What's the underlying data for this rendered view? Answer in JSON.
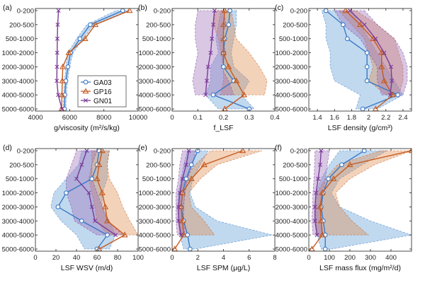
{
  "figure": {
    "depth_labels": [
      "0-200",
      "200-500",
      "500-1000",
      "1000-2000",
      "2000-3000",
      "3000-4000",
      "4000-5000",
      "5000-6000"
    ],
    "series_styles": [
      {
        "name": "GA03",
        "color": "#3b78c4",
        "fill": "#5b9bd5",
        "marker": "circle"
      },
      {
        "name": "GP16",
        "color": "#c65a1e",
        "fill": "#e08a4a",
        "marker": "triangle"
      },
      {
        "name": "GN01",
        "color": "#7a3b98",
        "fill": "#9b6bb8",
        "marker": "x"
      }
    ]
  },
  "chart_data": [
    {
      "type": "line",
      "panel_label": "(a)",
      "xlabel": "g/viscosity (m²/s/kg)",
      "xlim": [
        4000,
        10000
      ],
      "xticks": [
        4000,
        6000,
        8000,
        10000
      ],
      "xtick_labels": [
        "4000",
        "6000",
        "8000",
        "10000"
      ],
      "legend": "inside-lower-right",
      "series": [
        {
          "name": "GA03",
          "values": [
            9100,
            7200,
            6600,
            6050,
            5900,
            5780,
            5720,
            5700
          ]
        },
        {
          "name": "GP16",
          "values": [
            9500,
            7500,
            6900,
            5950,
            5600,
            5570,
            5550,
            5530
          ]
        },
        {
          "name": "GN01",
          "values": [
            5350,
            5300,
            5280,
            5270,
            5260,
            5250,
            5330,
            5550
          ]
        }
      ],
      "bands": [
        {
          "name": "GA03",
          "lower": [
            8700,
            7000,
            6400,
            5900,
            5780,
            5700,
            5650,
            5620
          ],
          "upper": [
            9400,
            7400,
            6800,
            6200,
            6000,
            5880,
            5800,
            5780
          ]
        }
      ]
    },
    {
      "type": "line",
      "panel_label": "(b)",
      "xlabel": "f_LSF",
      "xlim": [
        0,
        0.4
      ],
      "xticks": [
        0,
        0.1,
        0.2,
        0.3,
        0.4
      ],
      "xtick_labels": [
        "0",
        "0.1",
        "0.2",
        "0.3",
        "0.4"
      ],
      "series": [
        {
          "name": "GA03",
          "values": [
            0.225,
            0.22,
            0.205,
            0.2,
            0.2,
            0.24,
            0.16,
            0.3
          ]
        },
        {
          "name": "GP16",
          "values": [
            0.205,
            0.2,
            0.2,
            0.2,
            0.22,
            0.25,
            0.28,
            0.205
          ]
        },
        {
          "name": "GN01",
          "values": [
            0.165,
            0.16,
            0.155,
            0.15,
            0.14,
            0.135,
            0.13,
            null
          ]
        }
      ],
      "bands": [
        {
          "name": "GA03",
          "lower": [
            0.19,
            0.18,
            0.17,
            0.18,
            0.15,
            0.15,
            0.13,
            0.18
          ],
          "upper": [
            0.25,
            0.25,
            0.24,
            0.23,
            0.24,
            0.3,
            0.27,
            0.32
          ]
        },
        {
          "name": "GP16",
          "lower": [
            0.17,
            0.16,
            0.18,
            0.19,
            0.2,
            0.2,
            0.19,
            null
          ],
          "upper": [
            0.23,
            0.24,
            0.25,
            0.3,
            0.34,
            0.37,
            0.36,
            null
          ]
        },
        {
          "name": "GN01",
          "lower": [
            0.1,
            0.09,
            0.09,
            0.1,
            0.09,
            0.08,
            0.09,
            null
          ],
          "upper": [
            0.2,
            0.21,
            0.19,
            0.21,
            0.19,
            0.22,
            0.24,
            null
          ]
        }
      ]
    },
    {
      "type": "line",
      "panel_label": "(c)",
      "xlabel": "LSF density (g/cm³)",
      "xlim": [
        1.3,
        2.5
      ],
      "xticks": [
        1.4,
        1.6,
        1.8,
        2.0,
        2.2,
        2.4
      ],
      "xtick_labels": [
        "1.4",
        "1.6",
        "1.8",
        "2",
        "2.2",
        "2.4"
      ],
      "series": [
        {
          "name": "GA03",
          "values": [
            1.5,
            1.7,
            1.75,
            1.98,
            1.98,
            1.98,
            2.34,
            1.93
          ]
        },
        {
          "name": "GP16",
          "values": [
            1.73,
            1.9,
            2.05,
            2.15,
            2.15,
            2.18,
            2.28,
            2.08
          ]
        },
        {
          "name": "GN01",
          "values": [
            1.78,
            1.95,
            2.08,
            2.18,
            2.26,
            2.27,
            2.25,
            null
          ]
        }
      ],
      "bands": [
        {
          "name": "GA03",
          "lower": [
            1.45,
            1.5,
            1.5,
            1.55,
            1.55,
            1.6,
            1.9,
            1.85
          ],
          "upper": [
            1.8,
            1.9,
            2.0,
            2.1,
            2.2,
            2.3,
            2.4,
            2.1
          ]
        },
        {
          "name": "GP16",
          "lower": [
            1.65,
            1.8,
            1.95,
            2.0,
            2.05,
            2.0,
            2.2,
            null
          ],
          "upper": [
            1.85,
            2.1,
            2.3,
            2.35,
            2.4,
            2.4,
            2.35,
            null
          ]
        },
        {
          "name": "GN01",
          "lower": [
            1.6,
            1.7,
            1.9,
            2.0,
            2.1,
            2.1,
            2.15,
            null
          ],
          "upper": [
            1.95,
            2.1,
            2.3,
            2.4,
            2.45,
            2.45,
            2.4,
            null
          ]
        }
      ]
    },
    {
      "type": "line",
      "panel_label": "(d)",
      "xlabel": "LSF WSV (m/d)",
      "xlim": [
        0,
        100
      ],
      "xticks": [
        0,
        20,
        40,
        60,
        80,
        100
      ],
      "xtick_labels": [
        "0",
        "20",
        "40",
        "60",
        "80",
        "100"
      ],
      "series": [
        {
          "name": "GA03",
          "values": [
            62,
            60,
            55,
            30,
            22,
            45,
            70,
            60
          ]
        },
        {
          "name": "GP16",
          "values": [
            65,
            62,
            60,
            65,
            68,
            70,
            87,
            62
          ]
        },
        {
          "name": "GN01",
          "values": [
            50,
            45,
            40,
            52,
            55,
            58,
            78,
            null
          ]
        }
      ],
      "bands": [
        {
          "name": "GA03",
          "lower": [
            45,
            42,
            30,
            18,
            15,
            25,
            40,
            48
          ],
          "upper": [
            72,
            70,
            70,
            65,
            65,
            72,
            78,
            72
          ]
        },
        {
          "name": "GP16",
          "lower": [
            55,
            55,
            52,
            55,
            58,
            60,
            70,
            null
          ],
          "upper": [
            72,
            70,
            72,
            80,
            85,
            92,
            100,
            null
          ]
        },
        {
          "name": "GN01",
          "lower": [
            40,
            35,
            30,
            30,
            35,
            38,
            60,
            null
          ],
          "upper": [
            60,
            55,
            55,
            60,
            65,
            70,
            85,
            null
          ]
        }
      ]
    },
    {
      "type": "line",
      "panel_label": "(e)",
      "xlabel": "LSF SPM (μg/L)",
      "xlim": [
        0,
        8
      ],
      "xticks": [
        0,
        2,
        4,
        6,
        8
      ],
      "xtick_labels": [
        "0",
        "2",
        "4",
        "6",
        "8"
      ],
      "series": [
        {
          "name": "GA03",
          "values": [
            2.0,
            1.5,
            1.1,
            0.8,
            0.7,
            0.9,
            1.2,
            1.4
          ]
        },
        {
          "name": "GP16",
          "values": [
            5.5,
            2.5,
            1.5,
            0.8,
            0.7,
            0.8,
            0.9,
            0.2
          ]
        },
        {
          "name": "GN01",
          "values": [
            1.3,
            1.1,
            0.8,
            0.6,
            0.5,
            0.5,
            0.7,
            null
          ]
        }
      ],
      "bands": [
        {
          "name": "GA03",
          "lower": [
            1.2,
            0.9,
            0.7,
            0.5,
            0.4,
            0.5,
            0.6,
            0.9
          ],
          "upper": [
            2.8,
            2.2,
            1.6,
            1.4,
            1.8,
            3.5,
            7.8,
            1.8
          ]
        },
        {
          "name": "GP16",
          "lower": [
            3.0,
            1.8,
            1.0,
            0.6,
            0.5,
            0.5,
            0.6,
            null
          ],
          "upper": [
            7.0,
            3.5,
            2.2,
            1.3,
            1.5,
            2.5,
            3.3,
            null
          ]
        },
        {
          "name": "GN01",
          "lower": [
            0.8,
            0.6,
            0.5,
            0.3,
            0.3,
            0.3,
            0.4,
            null
          ],
          "upper": [
            1.8,
            1.6,
            1.2,
            1.0,
            0.9,
            0.9,
            1.0,
            null
          ]
        }
      ]
    },
    {
      "type": "line",
      "panel_label": "(f)",
      "xlabel": "LSF mass flux (mg/m²/d)",
      "xlim": [
        0,
        500
      ],
      "xticks": [
        0,
        100,
        200,
        300,
        400
      ],
      "xtick_labels": [
        "0",
        "100",
        "200",
        "300",
        "400"
      ],
      "series": [
        {
          "name": "GA03",
          "values": [
            270,
            160,
            95,
            70,
            60,
            70,
            80,
            80
          ]
        },
        {
          "name": "GP16",
          "values": [
            500,
            200,
            120,
            65,
            55,
            60,
            65,
            15
          ]
        },
        {
          "name": "GN01",
          "values": [
            60,
            55,
            45,
            35,
            30,
            30,
            40,
            null
          ]
        }
      ],
      "bands": [
        {
          "name": "GA03",
          "lower": [
            150,
            100,
            60,
            35,
            30,
            35,
            40,
            60
          ],
          "upper": [
            380,
            260,
            150,
            110,
            150,
            300,
            500,
            110
          ]
        },
        {
          "name": "GP16",
          "lower": [
            350,
            140,
            80,
            40,
            35,
            35,
            40,
            null
          ],
          "upper": [
            500,
            320,
            200,
            130,
            150,
            210,
            290,
            null
          ]
        },
        {
          "name": "GN01",
          "lower": [
            30,
            28,
            25,
            20,
            18,
            15,
            20,
            null
          ],
          "upper": [
            100,
            90,
            80,
            70,
            60,
            60,
            70,
            null
          ]
        }
      ]
    }
  ]
}
